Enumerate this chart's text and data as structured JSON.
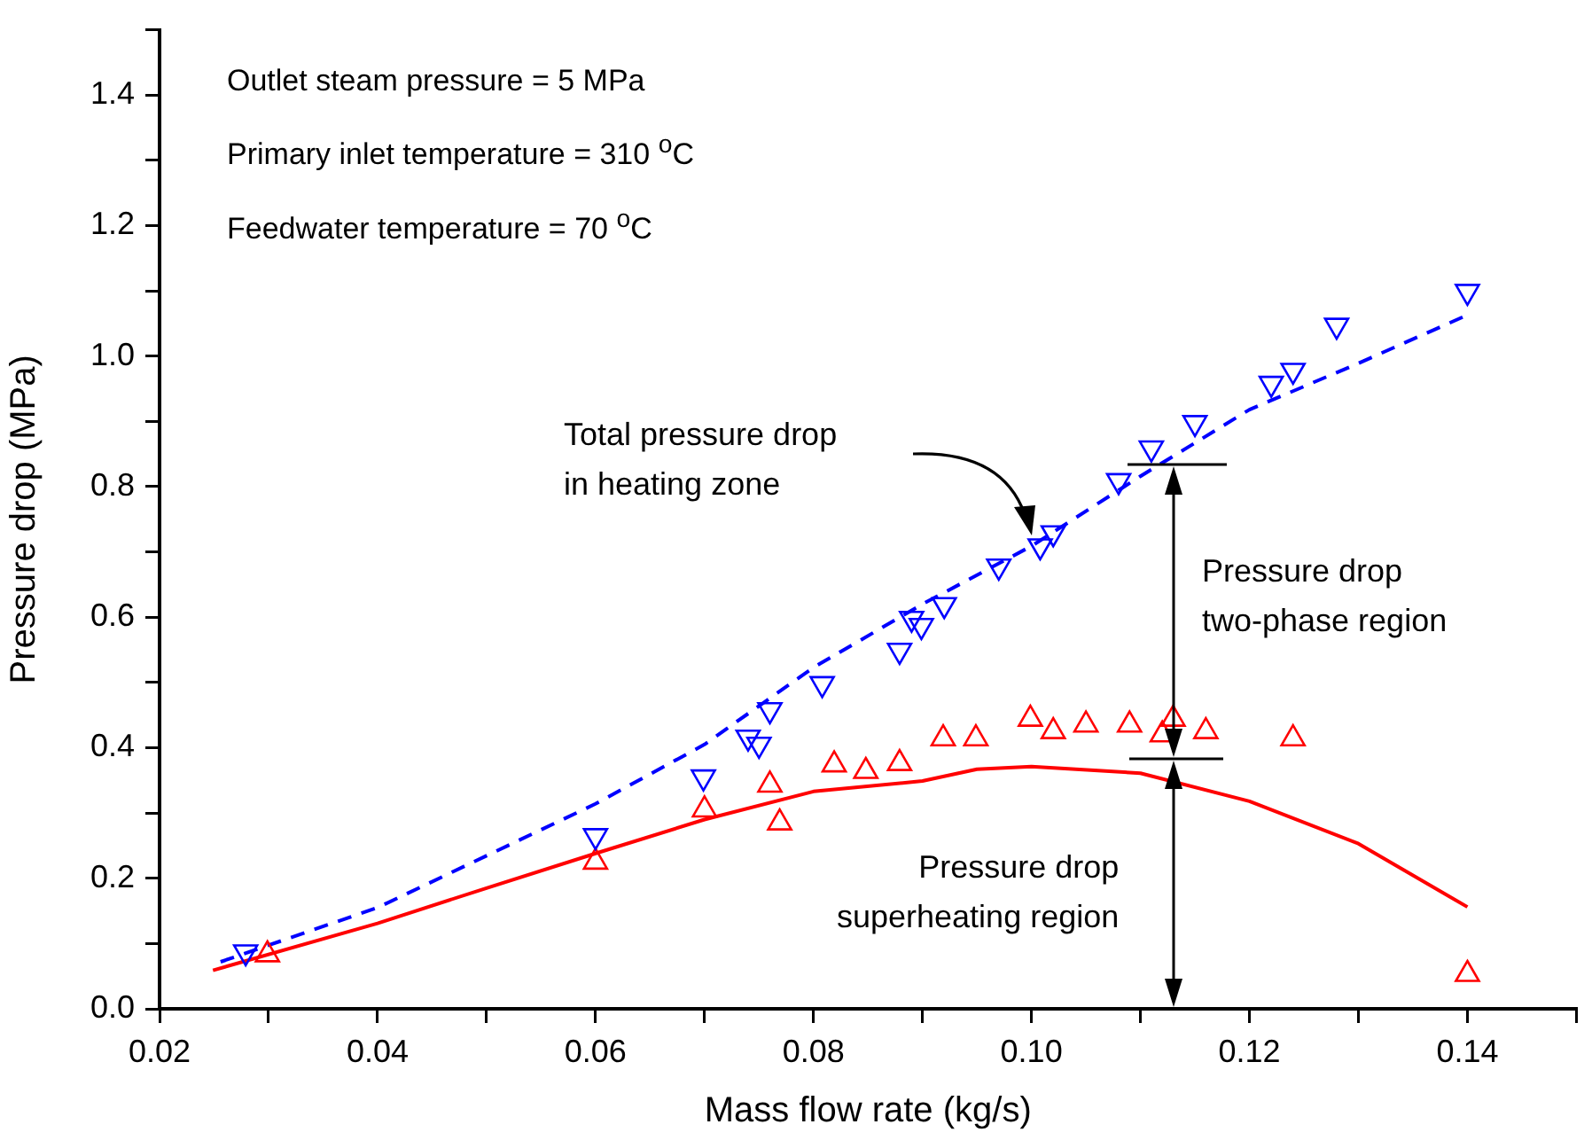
{
  "chart_data": {
    "type": "scatter",
    "xlabel": "Mass flow rate (kg/s)",
    "ylabel": "Pressure drop (MPa)",
    "xlim": [
      0.02,
      0.15
    ],
    "ylim": [
      0,
      1.5
    ],
    "xticks": [
      0.02,
      {
        "value": 0.03,
        "label": null
      },
      0.04,
      {
        "value": 0.05,
        "label": null
      },
      0.06,
      {
        "value": 0.07,
        "label": null
      },
      0.08,
      {
        "value": 0.09,
        "label": null
      },
      {
        "value": 0.1,
        "label": "0.10"
      },
      {
        "value": 0.11,
        "label": null
      },
      0.12,
      {
        "value": 0.13,
        "label": null
      },
      0.14,
      {
        "value": 0.15,
        "label": null
      }
    ],
    "yticks": [
      {
        "value": 0,
        "label": "0.0"
      },
      {
        "value": 0.1,
        "label": null
      },
      0.2,
      {
        "value": 0.3,
        "label": null
      },
      0.4,
      {
        "value": 0.5,
        "label": null
      },
      0.6,
      {
        "value": 0.7,
        "label": null
      },
      0.8,
      {
        "value": 0.9,
        "label": null
      },
      {
        "value": 1,
        "label": "1.0"
      },
      {
        "value": 1.1,
        "label": null
      },
      1.2,
      {
        "value": 1.3,
        "label": null
      },
      1.4,
      {
        "value": 1.5,
        "label": null
      }
    ],
    "grid": false,
    "legend": false,
    "series": [
      {
        "color": "#0000ff",
        "marker": "triangle_down",
        "x": [
          0.0279,
          0.06,
          0.0699,
          0.074,
          0.075,
          0.076,
          0.0808,
          0.0879,
          0.089,
          0.0899,
          0.092,
          0.097,
          0.1008,
          0.102,
          0.108,
          0.111,
          0.115,
          0.122,
          0.124,
          0.128,
          0.14
        ],
        "values": [
          0.087,
          0.265,
          0.355,
          0.416,
          0.405,
          0.458,
          0.498,
          0.549,
          0.598,
          0.587,
          0.619,
          0.678,
          0.709,
          0.729,
          0.809,
          0.859,
          0.898,
          0.958,
          0.978,
          1.047,
          1.099
        ]
      },
      {
        "color": "#ff0000",
        "marker": "triangle",
        "x": [
          0.0299,
          0.06,
          0.07,
          0.076,
          0.0769,
          0.0819,
          0.0848,
          0.0879,
          0.0919,
          0.0949,
          0.0999,
          0.102,
          0.105,
          0.109,
          0.112,
          0.113,
          0.116,
          0.124,
          0.14
        ],
        "values": [
          0.083,
          0.225,
          0.305,
          0.343,
          0.285,
          0.374,
          0.364,
          0.376,
          0.414,
          0.414,
          0.444,
          0.425,
          0.435,
          0.435,
          0.42,
          0.444,
          0.425,
          0.414,
          0.053
        ]
      },
      {
        "type": "line",
        "color": "#0000ff",
        "line_style": "dashed",
        "marker": "none",
        "x": [
          0.0256,
          0.04,
          0.06,
          0.07,
          0.08,
          0.09,
          0.1,
          0.11,
          0.12,
          0.13,
          0.14
        ],
        "values": [
          0.072,
          0.155,
          0.314,
          0.405,
          0.523,
          0.62,
          0.709,
          0.816,
          0.918,
          0.989,
          1.063
        ]
      },
      {
        "type": "line",
        "color": "#ff0000",
        "line_style": "solid",
        "marker": "none",
        "x": [
          0.0249,
          0.04,
          0.05,
          0.06,
          0.07,
          0.08,
          0.09,
          0.095,
          0.1,
          0.11,
          0.12,
          0.13,
          0.14
        ],
        "values": [
          0.059,
          0.131,
          0.185,
          0.238,
          0.29,
          0.333,
          0.349,
          0.367,
          0.371,
          0.361,
          0.318,
          0.253,
          0.156
        ]
      }
    ],
    "annotations": [
      "Outlet steam pressure = 5 MPa",
      "Primary inlet temperature = 310 $^{o}$C",
      "Feedwater temperature = 70 $^{o}$C",
      "Total pressure drop\nin heating zone",
      "Pressure drop\ntwo-phase region",
      "Pressure drop\nsuperheating region"
    ]
  }
}
